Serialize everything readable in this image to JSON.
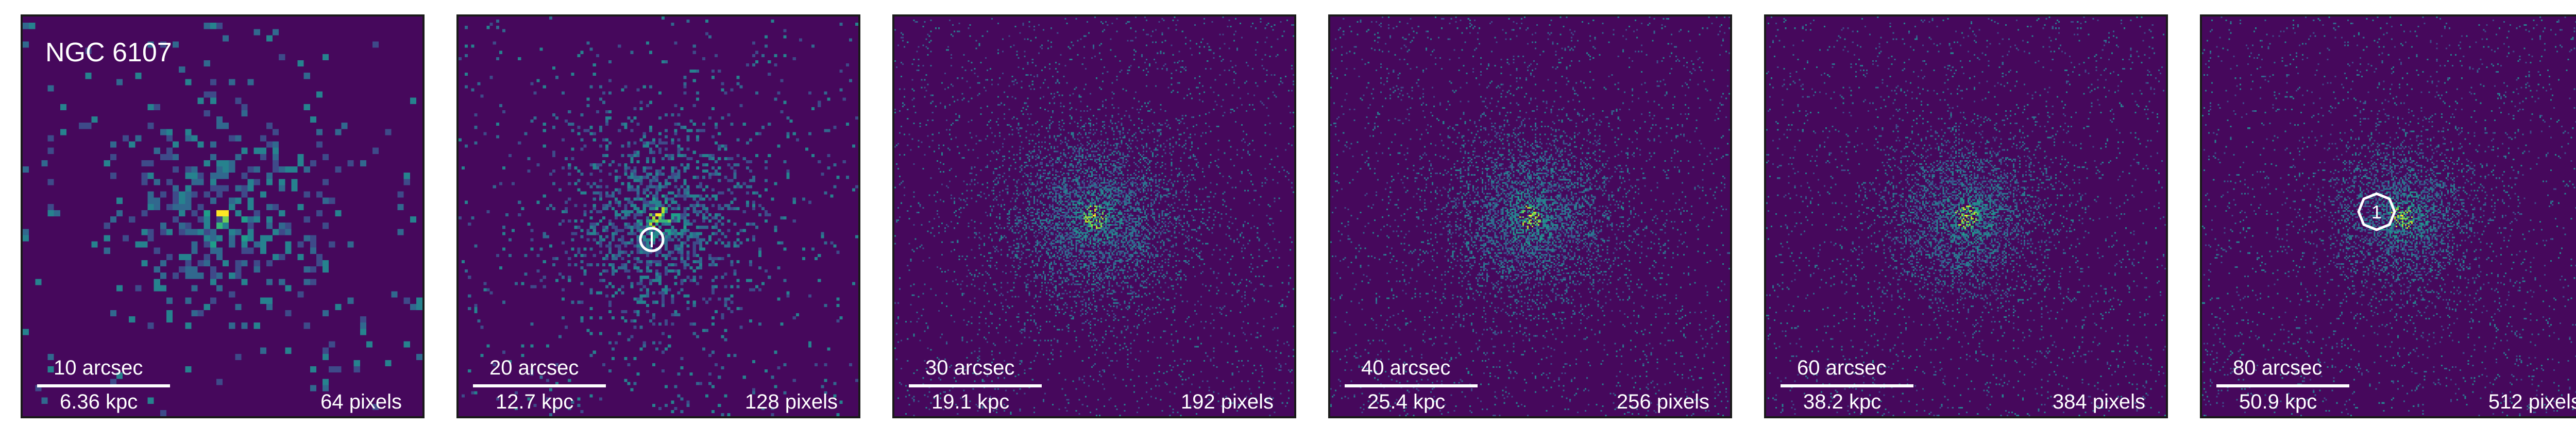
{
  "figure": {
    "galaxy": "NGC 6107",
    "colormap": [
      "#440154",
      "#46085c",
      "#3e4a89",
      "#31688e",
      "#26828e",
      "#1f9e89",
      "#35b779",
      "#6ece58",
      "#b5de2b",
      "#fde725"
    ],
    "panels": [
      {
        "arcsec": "10 arcsec",
        "kpc": "6.36 kpc",
        "pixels": "64 pixels",
        "grid": 64,
        "marker": null
      },
      {
        "arcsec": "20 arcsec",
        "kpc": "12.7 kpc",
        "pixels": "128 pixels",
        "grid": 128,
        "marker": "circle"
      },
      {
        "arcsec": "30 arcsec",
        "kpc": "19.1 kpc",
        "pixels": "192 pixels",
        "grid": 192,
        "marker": null
      },
      {
        "arcsec": "40 arcsec",
        "kpc": "25.4 kpc",
        "pixels": "256 pixels",
        "grid": 256,
        "marker": null
      },
      {
        "arcsec": "60 arcsec",
        "kpc": "38.2 kpc",
        "pixels": "384 pixels",
        "grid": 384,
        "marker": null
      },
      {
        "arcsec": "80 arcsec",
        "kpc": "50.9 kpc",
        "pixels": "512 pixels",
        "grid": 512,
        "marker": "polygon-1"
      }
    ],
    "marker_label": "1"
  }
}
